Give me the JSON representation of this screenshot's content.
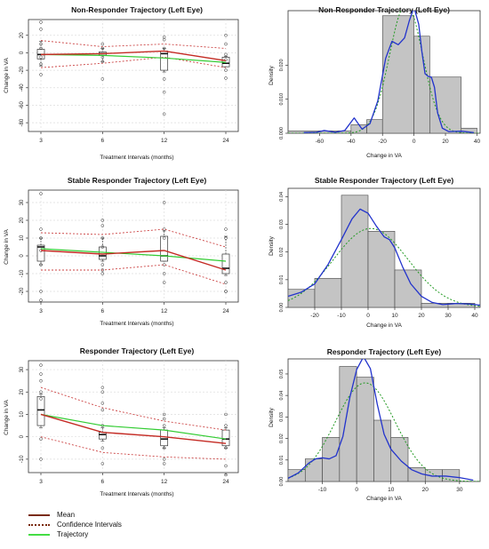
{
  "colors": {
    "mean": "#c42b24",
    "confidence": "#cc4444",
    "trajectory": "#33cc33",
    "legend_mean": "#7a2b10",
    "legend_confidence": "#7a2b10",
    "legend_trajectory": "#44dd44",
    "hist_fill": "#c4c4c4",
    "kde": "#2233cc",
    "normal": "#229922",
    "grid": "#dddddd"
  },
  "legend": {
    "mean": "Mean",
    "confidence": "Confidence Intervals",
    "trajectory": "Trajectory"
  },
  "chart_data": [
    {
      "type": "box",
      "title": "Non-Responder Trajectory (Left Eye)",
      "xlabel": "Treatment Intervals (months)",
      "ylabel": "Change in VA",
      "categories": [
        "3",
        "6",
        "12",
        "24"
      ],
      "yticks": [
        20,
        0,
        -20,
        -40,
        -60,
        -80
      ],
      "ylim": [
        -90,
        38
      ],
      "boxes": [
        {
          "min": -15,
          "q1": -7,
          "median": -2,
          "q3": 4,
          "max": 13
        },
        {
          "min": -10,
          "q1": -3,
          "median": -1,
          "q3": 1,
          "max": 5
        },
        {
          "min": -22,
          "q1": -20,
          "median": -1,
          "q3": 2,
          "max": 5
        },
        {
          "min": -16,
          "q1": -16,
          "median": -12,
          "q3": -5,
          "max": -4
        }
      ],
      "points": [
        [
          35,
          27,
          10,
          5,
          -5,
          -13,
          -25
        ],
        [
          10,
          5,
          -5,
          -10,
          -30
        ],
        [
          18,
          15,
          5,
          -30,
          -45,
          -70
        ],
        [
          20,
          10,
          -2,
          -8,
          -20,
          -29
        ]
      ],
      "mean": [
        -2,
        -1,
        2,
        -9
      ],
      "ci_upper": [
        14,
        7,
        10,
        5
      ],
      "ci_lower": [
        -17,
        -12,
        -5,
        -17
      ],
      "trajectory": [
        -2,
        -3,
        -6,
        -11
      ]
    },
    {
      "type": "histogram",
      "title": "Non-Responder Trajectory (Left Eye)",
      "xlabel": "Change in VA",
      "ylabel": "Density",
      "xticks": [
        -60,
        -40,
        -20,
        0,
        20,
        40
      ],
      "yticks": [
        0.0,
        0.01,
        0.02
      ],
      "ytick_labels": [
        "0.000",
        "0.010",
        "0.020"
      ],
      "xlim": [
        -80,
        42
      ],
      "ylim": [
        0,
        0.036
      ],
      "bins": [
        -80,
        -40,
        -30,
        -20,
        0,
        10,
        30,
        40
      ],
      "density": [
        0.0007,
        0.0025,
        0.004,
        0.0345,
        0.0285,
        0.0165,
        0.0015
      ],
      "kde": [
        [
          -70,
          0.0002
        ],
        [
          -62,
          0.0003
        ],
        [
          -57,
          0.0008
        ],
        [
          -50,
          0.0003
        ],
        [
          -44,
          0.0008
        ],
        [
          -38,
          0.0045
        ],
        [
          -33,
          0.0012
        ],
        [
          -28,
          0.0028
        ],
        [
          -23,
          0.0095
        ],
        [
          -18,
          0.022
        ],
        [
          -14,
          0.027
        ],
        [
          -10,
          0.026
        ],
        [
          -6,
          0.028
        ],
        [
          -3,
          0.033
        ],
        [
          0,
          0.037
        ],
        [
          3,
          0.032
        ],
        [
          5,
          0.024
        ],
        [
          7,
          0.0175
        ],
        [
          9,
          0.0167
        ],
        [
          11,
          0.0165
        ],
        [
          13,
          0.0135
        ],
        [
          15,
          0.006
        ],
        [
          18,
          0.0015
        ],
        [
          22,
          0.0005
        ],
        [
          30,
          0.0006
        ],
        [
          38,
          0.0002
        ]
      ],
      "normal": {
        "mean": -5,
        "sd": 10.5
      }
    },
    {
      "type": "box",
      "title": "Stable Responder Trajectory (Left Eye)",
      "xlabel": "Treatment Intervals (months)",
      "ylabel": "Change in VA",
      "categories": [
        "3",
        "6",
        "12",
        "24"
      ],
      "yticks": [
        30,
        20,
        10,
        0,
        -10,
        -20
      ],
      "ylim": [
        -26,
        37
      ],
      "boxes": [
        {
          "min": -5,
          "q1": -3,
          "median": 5,
          "q3": 6,
          "max": 10
        },
        {
          "min": -3,
          "q1": -2,
          "median": 0,
          "q3": 5,
          "max": 10
        },
        {
          "min": -3,
          "q1": -3,
          "median": 0,
          "q3": 11,
          "max": 14
        },
        {
          "min": -11,
          "q1": -10,
          "median": -7,
          "q3": 1,
          "max": 11
        }
      ],
      "points": [
        [
          35,
          15,
          10,
          3,
          -5,
          -20,
          -25
        ],
        [
          20,
          17,
          10,
          5,
          -5,
          -8,
          -10
        ],
        [
          30,
          15,
          10,
          -5,
          -10,
          -15
        ],
        [
          15,
          10,
          -15,
          -20,
          -20
        ]
      ],
      "mean": [
        3,
        1,
        3,
        -8
      ],
      "ci_upper": [
        13,
        12,
        15,
        5
      ],
      "ci_lower": [
        -8,
        -8,
        -5,
        -16
      ],
      "trajectory": [
        4,
        2,
        0,
        -3
      ]
    },
    {
      "type": "histogram",
      "title": "Stable Responder Trajectory (Left Eye)",
      "xlabel": "Change in VA",
      "ylabel": "Density",
      "xticks": [
        -20,
        -10,
        0,
        10,
        20,
        30,
        40
      ],
      "yticks": [
        0.0,
        0.01,
        0.02,
        0.03,
        0.04
      ],
      "ytick_labels": [
        "0.00",
        "0.01",
        "0.02",
        "0.03",
        "0.04"
      ],
      "xlim": [
        -30,
        42
      ],
      "ylim": [
        0,
        0.043
      ],
      "bins": [
        -30,
        -20,
        -10,
        0,
        10,
        20,
        30,
        40
      ],
      "density": [
        0.0065,
        0.0105,
        0.0405,
        0.0275,
        0.0135,
        0.0015,
        0.0015
      ],
      "kde": [
        [
          -30,
          0.004
        ],
        [
          -25,
          0.0055
        ],
        [
          -20,
          0.0085
        ],
        [
          -15,
          0.0155
        ],
        [
          -10,
          0.0245
        ],
        [
          -6,
          0.032
        ],
        [
          -3,
          0.0355
        ],
        [
          0,
          0.034
        ],
        [
          3,
          0.0295
        ],
        [
          6,
          0.0255
        ],
        [
          8,
          0.0245
        ],
        [
          10,
          0.0215
        ],
        [
          13,
          0.0145
        ],
        [
          16,
          0.0085
        ],
        [
          20,
          0.004
        ],
        [
          24,
          0.0018
        ],
        [
          28,
          0.001
        ],
        [
          33,
          0.0014
        ],
        [
          38,
          0.0012
        ],
        [
          42,
          0.0008
        ]
      ],
      "normal": {
        "mean": 1,
        "sd": 14
      }
    },
    {
      "type": "box",
      "title": "Responder Trajectory (Left Eye)",
      "xlabel": "Treatment Intervals (months)",
      "ylabel": "Change in VA",
      "categories": [
        "3",
        "6",
        "12",
        "24"
      ],
      "yticks": [
        30,
        20,
        10,
        0,
        -10
      ],
      "ylim": [
        -16,
        34
      ],
      "boxes": [
        {
          "min": 4,
          "q1": 5,
          "median": 12,
          "q3": 18,
          "max": 19
        },
        {
          "min": -2,
          "q1": -1,
          "median": 1,
          "q3": 2,
          "max": 4
        },
        {
          "min": -5,
          "q1": -4,
          "median": -1,
          "q3": 3,
          "max": 4
        },
        {
          "min": -5,
          "q1": -4,
          "median": -1,
          "q3": 3,
          "max": 4
        }
      ],
      "points": [
        [
          32,
          28,
          25,
          20,
          17,
          -1,
          -10
        ],
        [
          22,
          20,
          15,
          12,
          5,
          -5,
          -12
        ],
        [
          10,
          8,
          5,
          -5,
          -10,
          -12
        ],
        [
          10,
          5,
          -5,
          -13,
          -17
        ]
      ],
      "mean": [
        10,
        2,
        0,
        -3
      ],
      "ci_upper": [
        22,
        13,
        7,
        3
      ],
      "ci_lower": [
        0,
        -7,
        -9,
        -10
      ],
      "trajectory": [
        10,
        5,
        3,
        -1
      ]
    },
    {
      "type": "histogram",
      "title": "Responder Trajectory (Left Eye)",
      "xlabel": "Change in VA",
      "ylabel": "Density",
      "xticks": [
        -10,
        0,
        10,
        20,
        30
      ],
      "yticks": [
        0.0,
        0.01,
        0.02,
        0.03,
        0.04,
        0.05
      ],
      "ytick_labels": [
        "0.00",
        "0.01",
        "0.02",
        "0.03",
        "0.04",
        "0.05"
      ],
      "xlim": [
        -20,
        36
      ],
      "ylim": [
        0,
        0.057
      ],
      "bins": [
        -20,
        -15,
        -10,
        -5,
        0,
        5,
        10,
        15,
        20,
        25,
        30
      ],
      "density": [
        0.0055,
        0.0105,
        0.0205,
        0.0535,
        0.0485,
        0.0285,
        0.0205,
        0.0065,
        0.0055,
        0.0055
      ],
      "kde": [
        [
          -20,
          0.0015
        ],
        [
          -17,
          0.004
        ],
        [
          -14,
          0.0085
        ],
        [
          -12,
          0.0105
        ],
        [
          -10,
          0.011
        ],
        [
          -8,
          0.0105
        ],
        [
          -6,
          0.012
        ],
        [
          -4,
          0.021
        ],
        [
          -2,
          0.039
        ],
        [
          0,
          0.052
        ],
        [
          2,
          0.058
        ],
        [
          4,
          0.0525
        ],
        [
          6,
          0.036
        ],
        [
          8,
          0.022
        ],
        [
          10,
          0.015
        ],
        [
          13,
          0.0095
        ],
        [
          16,
          0.0055
        ],
        [
          19,
          0.0035
        ],
        [
          22,
          0.0025
        ],
        [
          26,
          0.0025
        ],
        [
          30,
          0.0018
        ],
        [
          34,
          0.0006
        ]
      ],
      "normal": {
        "mean": 2.5,
        "sd": 8.7
      }
    }
  ]
}
